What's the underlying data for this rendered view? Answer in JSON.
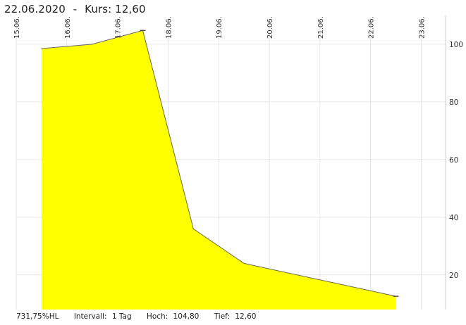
{
  "header": {
    "date": "22.06.2020",
    "separator": "-",
    "price_label": "Kurs:",
    "price_value": "12,60"
  },
  "footer": {
    "performance": "731,75%HL",
    "interval_label": "Intervall:",
    "interval_value": "1 Tag",
    "high_label": "Hoch:",
    "high_value": "104,80",
    "low_label": "Tief:",
    "low_value": "12,60"
  },
  "chart_data": {
    "type": "area",
    "x": [
      "15.06.",
      "16.06.",
      "17.06.",
      "18.06.",
      "19.06.",
      "20.06.",
      "21.06.",
      "22.06.",
      "23.06."
    ],
    "points": [
      {
        "x": "15.06.",
        "y": 98.5
      },
      {
        "x": "16.06.",
        "y": 100.0
      },
      {
        "x": "17.06.",
        "y": 104.8
      },
      {
        "x": "18.06.",
        "y": 36.0
      },
      {
        "x": "19.06.",
        "y": 24.0
      },
      {
        "x": "22.06.",
        "y": 12.6
      }
    ],
    "y_ticks": [
      20,
      40,
      60,
      80,
      100
    ],
    "ylim": [
      8,
      109
    ],
    "x_axis_position": "top",
    "y_axis_position": "right",
    "grid": true,
    "colors": {
      "fill": "#ffff00",
      "line": "#666666",
      "grid": "#e6e6e6",
      "axis": "#cccccc"
    }
  }
}
